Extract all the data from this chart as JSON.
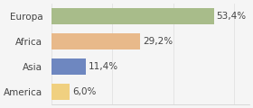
{
  "categories": [
    "America",
    "Asia",
    "Africa",
    "Europa"
  ],
  "values": [
    6.0,
    11.4,
    29.2,
    53.4
  ],
  "labels": [
    "6,0%",
    "11,4%",
    "29,2%",
    "53,4%"
  ],
  "bar_colors": [
    "#f0d080",
    "#6e87c0",
    "#e8b98a",
    "#a8bc8a"
  ],
  "background_color": "#f5f5f5",
  "label_fontsize": 7.5,
  "category_fontsize": 7.5,
  "xlim": [
    0,
    65
  ]
}
